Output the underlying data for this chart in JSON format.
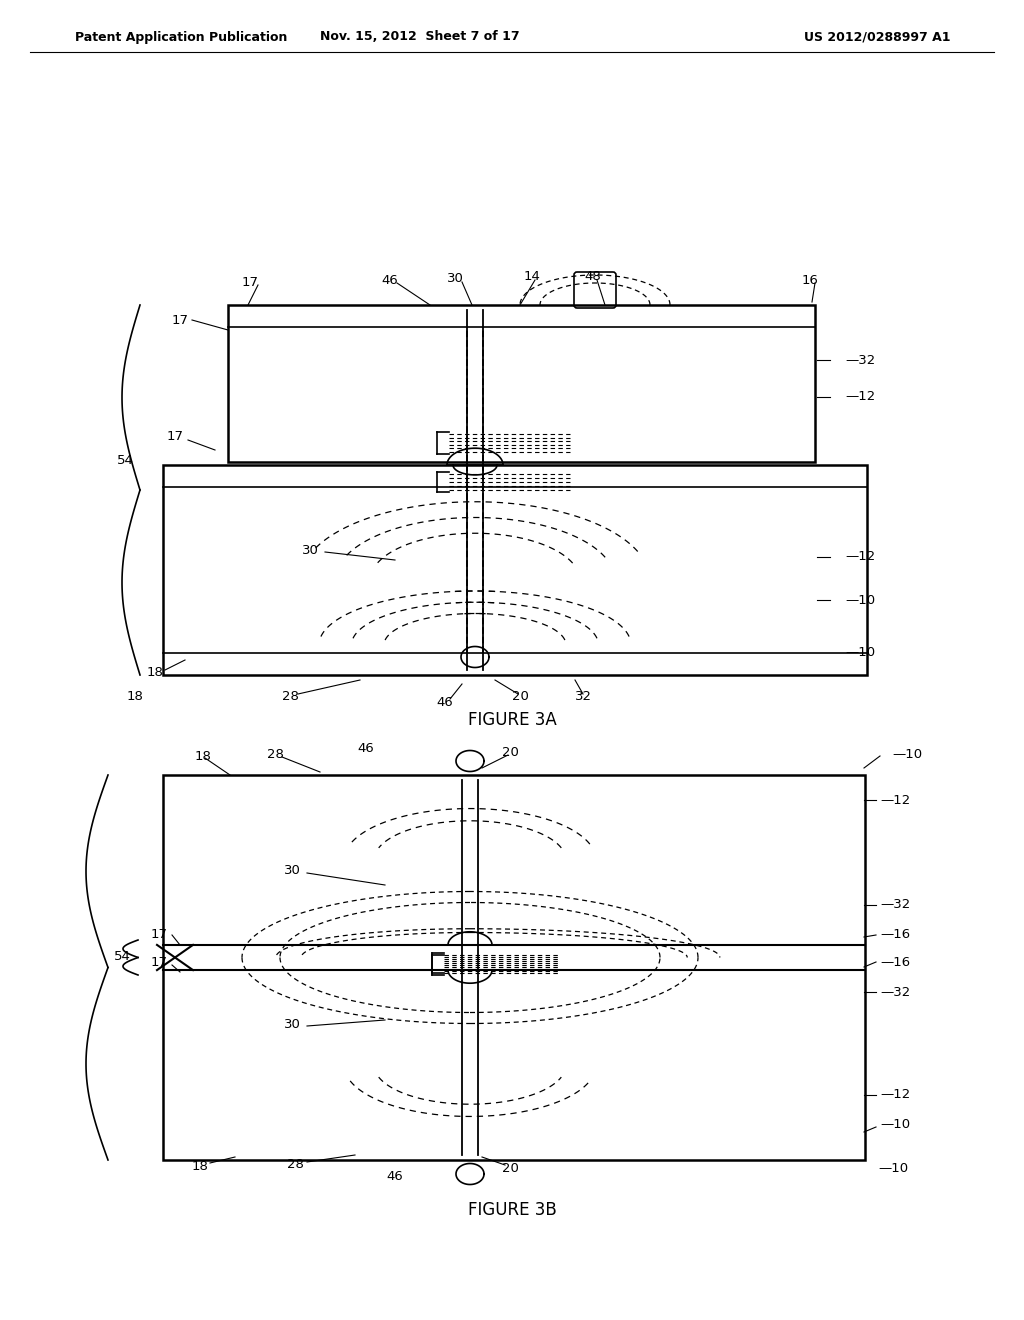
{
  "bg_color": "#ffffff",
  "line_color": "#000000",
  "header_left": "Patent Application Publication",
  "header_mid": "Nov. 15, 2012  Sheet 7 of 17",
  "header_right": "US 2012/0288997 A1",
  "fig3a_caption": "FIGURE 3A",
  "fig3b_caption": "FIGURE 3B"
}
